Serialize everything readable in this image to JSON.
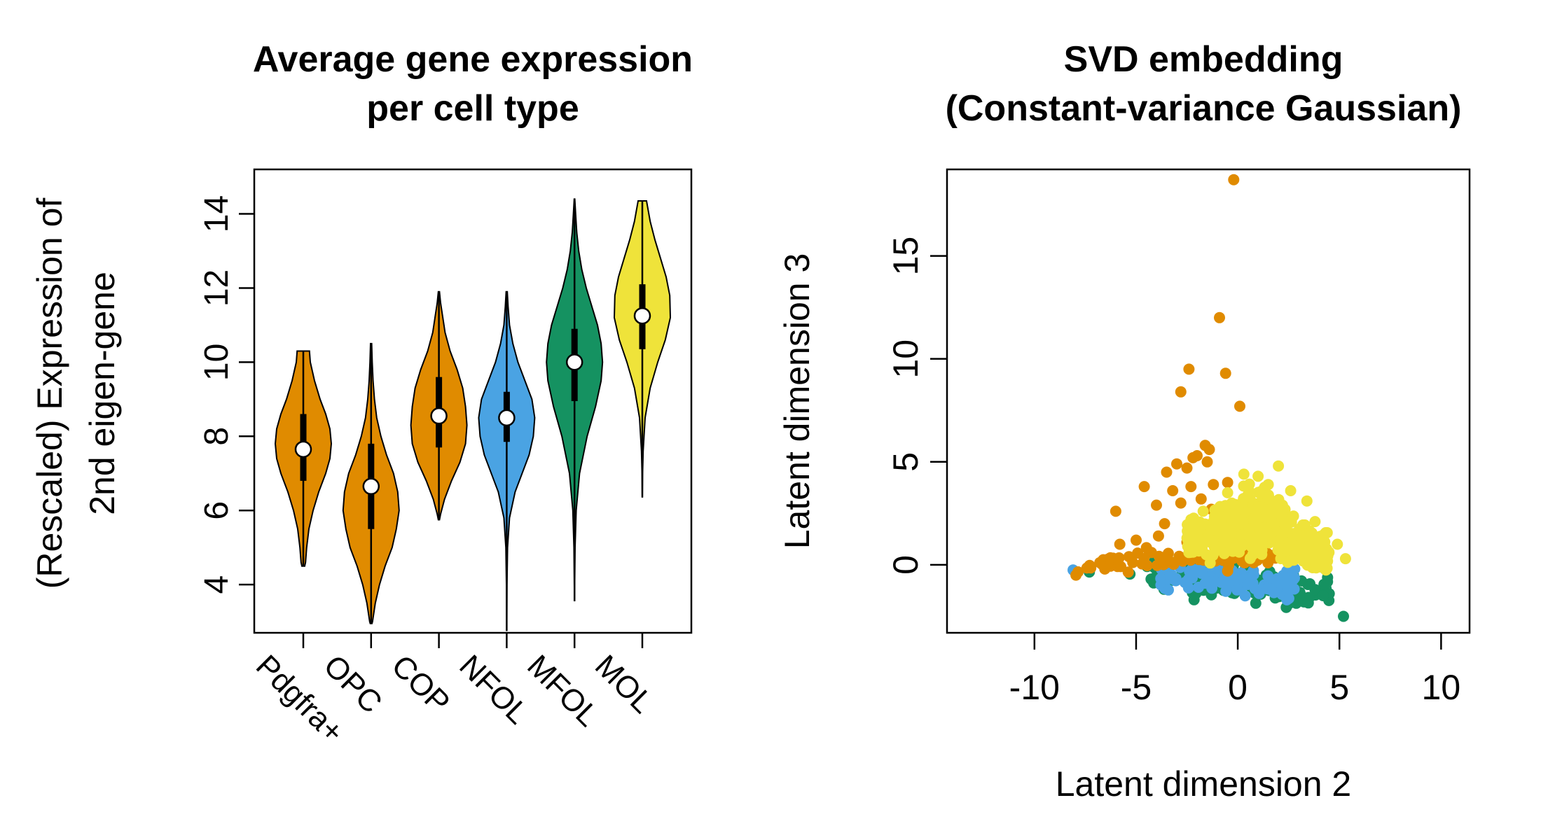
{
  "chart_data": [
    {
      "type": "violin",
      "title": [
        "Average gene expression",
        "per cell type"
      ],
      "xlabel": "",
      "ylabel": [
        "(Rescaled) Expression of",
        "2nd eigen-gene"
      ],
      "ylim": [
        2.7,
        15.2
      ],
      "yticks": [
        4,
        6,
        8,
        10,
        12,
        14
      ],
      "categories": [
        "Pdgfra+",
        "OPC",
        "COP",
        "NFOL",
        "MFOL",
        "MOL"
      ],
      "colors": [
        "#E08B00",
        "#E08B00",
        "#E08B00",
        "#4AA3E3",
        "#159261",
        "#EFE33A"
      ],
      "violins": [
        {
          "min": 4.5,
          "q1": 6.8,
          "median": 7.65,
          "q3": 8.6,
          "max": 10.3,
          "shape": [
            [
              4.5,
              0.05
            ],
            [
              4.6,
              0.08
            ],
            [
              5.0,
              0.12
            ],
            [
              5.5,
              0.2
            ],
            [
              6.0,
              0.35
            ],
            [
              6.5,
              0.55
            ],
            [
              7.0,
              0.8
            ],
            [
              7.4,
              0.95
            ],
            [
              7.8,
              1.0
            ],
            [
              8.2,
              0.95
            ],
            [
              8.6,
              0.8
            ],
            [
              9.0,
              0.6
            ],
            [
              9.5,
              0.4
            ],
            [
              10.0,
              0.25
            ],
            [
              10.3,
              0.22
            ]
          ]
        },
        {
          "min": 2.95,
          "q1": 5.5,
          "median": 6.65,
          "q3": 7.8,
          "max": 10.5,
          "shape": [
            [
              2.95,
              0.03
            ],
            [
              3.0,
              0.05
            ],
            [
              3.5,
              0.15
            ],
            [
              4.0,
              0.3
            ],
            [
              4.5,
              0.5
            ],
            [
              5.0,
              0.75
            ],
            [
              5.5,
              0.9
            ],
            [
              6.0,
              1.0
            ],
            [
              6.5,
              0.95
            ],
            [
              7.0,
              0.8
            ],
            [
              7.5,
              0.55
            ],
            [
              8.0,
              0.35
            ],
            [
              8.5,
              0.2
            ],
            [
              9.0,
              0.12
            ],
            [
              9.5,
              0.07
            ],
            [
              10.0,
              0.04
            ],
            [
              10.5,
              0.02
            ]
          ]
        },
        {
          "min": 5.75,
          "q1": 7.7,
          "median": 8.55,
          "q3": 9.6,
          "max": 11.9,
          "shape": [
            [
              5.75,
              0.02
            ],
            [
              5.9,
              0.06
            ],
            [
              6.3,
              0.2
            ],
            [
              6.8,
              0.45
            ],
            [
              7.3,
              0.75
            ],
            [
              7.8,
              0.95
            ],
            [
              8.3,
              1.0
            ],
            [
              8.8,
              0.95
            ],
            [
              9.3,
              0.85
            ],
            [
              9.8,
              0.65
            ],
            [
              10.3,
              0.4
            ],
            [
              10.8,
              0.22
            ],
            [
              11.3,
              0.12
            ],
            [
              11.6,
              0.06
            ],
            [
              11.9,
              0.02
            ]
          ]
        },
        {
          "min": 2.75,
          "q1": 7.85,
          "median": 8.5,
          "q3": 9.2,
          "max": 11.9,
          "shape": [
            [
              2.75,
              0.0
            ],
            [
              4.0,
              0.01
            ],
            [
              5.0,
              0.03
            ],
            [
              5.8,
              0.1
            ],
            [
              6.5,
              0.3
            ],
            [
              7.0,
              0.55
            ],
            [
              7.5,
              0.8
            ],
            [
              8.0,
              0.95
            ],
            [
              8.5,
              1.0
            ],
            [
              9.0,
              0.9
            ],
            [
              9.5,
              0.65
            ],
            [
              10.0,
              0.4
            ],
            [
              10.5,
              0.22
            ],
            [
              11.0,
              0.1
            ],
            [
              11.5,
              0.05
            ],
            [
              11.9,
              0.02
            ]
          ]
        },
        {
          "min": 3.55,
          "q1": 8.95,
          "median": 10.0,
          "q3": 10.9,
          "max": 14.4,
          "shape": [
            [
              3.55,
              0.0
            ],
            [
              5.0,
              0.02
            ],
            [
              6.0,
              0.06
            ],
            [
              7.0,
              0.18
            ],
            [
              8.0,
              0.45
            ],
            [
              8.8,
              0.75
            ],
            [
              9.5,
              0.95
            ],
            [
              10.0,
              1.0
            ],
            [
              10.5,
              0.95
            ],
            [
              11.0,
              0.82
            ],
            [
              11.5,
              0.62
            ],
            [
              12.0,
              0.42
            ],
            [
              12.5,
              0.26
            ],
            [
              13.0,
              0.15
            ],
            [
              13.5,
              0.08
            ],
            [
              14.0,
              0.04
            ],
            [
              14.4,
              0.01
            ]
          ]
        },
        {
          "min": 6.35,
          "q1": 10.35,
          "median": 11.25,
          "q3": 12.1,
          "max": 14.35,
          "shape": [
            [
              6.35,
              0.0
            ],
            [
              7.0,
              0.01
            ],
            [
              7.6,
              0.03
            ],
            [
              8.5,
              0.1
            ],
            [
              9.3,
              0.28
            ],
            [
              10.0,
              0.55
            ],
            [
              10.6,
              0.82
            ],
            [
              11.2,
              1.0
            ],
            [
              11.8,
              0.98
            ],
            [
              12.3,
              0.85
            ],
            [
              12.8,
              0.65
            ],
            [
              13.3,
              0.45
            ],
            [
              13.8,
              0.28
            ],
            [
              14.35,
              0.15
            ]
          ]
        }
      ]
    },
    {
      "type": "scatter",
      "title": [
        "SVD embedding",
        "(Constant-variance Gaussian)"
      ],
      "xlabel": "Latent dimension 2",
      "ylabel": "Latent dimension 3",
      "xlim": [
        -14.3,
        11.4
      ],
      "ylim": [
        -3.3,
        19.2
      ],
      "xticks": [
        -10,
        -5,
        0,
        5,
        10
      ],
      "xticklabels": [
        "-10",
        "-5",
        "0",
        "5",
        "10"
      ],
      "yticks": [
        0,
        5,
        10,
        15
      ],
      "series": [
        {
          "color": "#159261",
          "cluster": {
            "n": 130,
            "x": [
              -4.5,
              4.5
            ],
            "ymid": -0.85,
            "ytilt": -0.09,
            "yspread": 0.45
          },
          "points": [
            [
              -7.3,
              -0.35
            ],
            [
              5.2,
              -2.5
            ],
            [
              4.5,
              -1.4
            ],
            [
              3.8,
              -1.2
            ],
            [
              -5.3,
              -0.45
            ],
            [
              2.5,
              -1.9
            ],
            [
              4.2,
              -1.5
            ]
          ]
        },
        {
          "color": "#4AA3E3",
          "cluster": {
            "n": 110,
            "x": [
              -3.8,
              3.0
            ],
            "ymid": -0.7,
            "ytilt": -0.08,
            "yspread": 0.35
          },
          "points": [
            [
              -8.1,
              -0.25
            ]
          ]
        },
        {
          "color": "#E08B00",
          "cluster": {
            "n": 70,
            "x": [
              -8.0,
              2.0
            ],
            "ymid": 0.35,
            "ytilt": 0.04,
            "yspread": 0.25
          },
          "points": [
            [
              -0.2,
              18.7
            ],
            [
              -0.9,
              12.0
            ],
            [
              -2.4,
              9.5
            ],
            [
              -0.6,
              9.3
            ],
            [
              -2.8,
              8.4
            ],
            [
              0.1,
              7.7
            ],
            [
              -1.6,
              5.8
            ],
            [
              -1.4,
              5.6
            ],
            [
              -2.0,
              5.3
            ],
            [
              -2.2,
              5.2
            ],
            [
              -1.5,
              5.0
            ],
            [
              -3.0,
              4.9
            ],
            [
              -2.5,
              4.7
            ],
            [
              -3.5,
              4.5
            ],
            [
              -4.6,
              3.8
            ],
            [
              -3.2,
              3.6
            ],
            [
              -2.3,
              3.8
            ],
            [
              -1.2,
              3.9
            ],
            [
              -0.5,
              4.0
            ],
            [
              -1.8,
              3.2
            ],
            [
              -2.8,
              3.0
            ],
            [
              -4.0,
              2.9
            ],
            [
              -6.0,
              2.6
            ],
            [
              -3.6,
              2.0
            ],
            [
              -1.3,
              2.7
            ],
            [
              -0.3,
              2.2
            ],
            [
              0.2,
              1.8
            ],
            [
              -2.0,
              1.6
            ],
            [
              -5.0,
              1.2
            ],
            [
              -3.9,
              1.4
            ],
            [
              -2.5,
              1.1
            ],
            [
              -1.0,
              1.0
            ],
            [
              -5.8,
              1.0
            ]
          ]
        },
        {
          "color": "#EFE33A",
          "cluster": {
            "n": 520,
            "x": [
              -2.5,
              4.5
            ],
            "ymid": 1.0,
            "ytilt": -0.05,
            "yspread": 1.1
          },
          "points": [
            [
              2.0,
              4.8
            ],
            [
              1.0,
              4.3
            ],
            [
              0.3,
              4.4
            ],
            [
              1.5,
              3.9
            ],
            [
              2.6,
              3.6
            ],
            [
              -0.5,
              3.5
            ],
            [
              3.4,
              3.1
            ],
            [
              4.9,
              1.0
            ],
            [
              5.3,
              0.3
            ],
            [
              -1.7,
              2.6
            ],
            [
              -2.3,
              2.2
            ],
            [
              3.8,
              2.1
            ],
            [
              0.0,
              2.8
            ],
            [
              2.2,
              2.9
            ]
          ]
        }
      ]
    }
  ]
}
